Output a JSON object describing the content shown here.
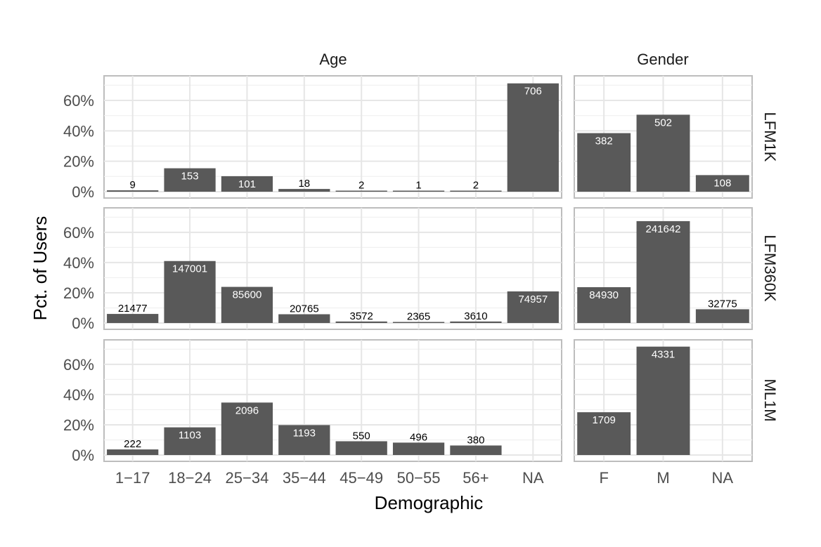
{
  "chart_data": {
    "type": "bar",
    "xlabel": "Demographic",
    "ylabel": "Pct. of Users",
    "ylim": [
      0,
      0.72
    ],
    "y_ticks": [
      0,
      0.2,
      0.4,
      0.6
    ],
    "y_tick_labels": [
      "0%",
      "20%",
      "40%",
      "60%"
    ],
    "grid": true,
    "bar_color": "#595959",
    "column_facets": [
      "Age",
      "Gender"
    ],
    "row_facets": [
      "LFM1K",
      "LFM360K",
      "ML1M"
    ],
    "categories": {
      "Age": [
        "1−17",
        "18−24",
        "25−34",
        "35−44",
        "45−49",
        "50−55",
        "56+",
        "NA"
      ],
      "Gender": [
        "F",
        "M",
        "NA"
      ]
    },
    "panels": [
      {
        "row": "LFM1K",
        "col": "Age",
        "values": [
          0.009,
          0.154,
          0.102,
          0.018,
          0.002,
          0.001,
          0.002,
          0.712
        ],
        "labels": [
          "9",
          "153",
          "101",
          "18",
          "2",
          "1",
          "2",
          "706"
        ]
      },
      {
        "row": "LFM1K",
        "col": "Gender",
        "values": [
          0.385,
          0.506,
          0.109
        ],
        "labels": [
          "382",
          "502",
          "108"
        ]
      },
      {
        "row": "LFM360K",
        "col": "Age",
        "values": [
          0.06,
          0.41,
          0.239,
          0.058,
          0.01,
          0.007,
          0.01,
          0.209
        ],
        "labels": [
          "21477",
          "147001",
          "85600",
          "20765",
          "3572",
          "2365",
          "3610",
          "74957"
        ]
      },
      {
        "row": "LFM360K",
        "col": "Gender",
        "values": [
          0.237,
          0.674,
          0.091
        ],
        "labels": [
          "84930",
          "241642",
          "32775"
        ]
      },
      {
        "row": "ML1M",
        "col": "Age",
        "values": [
          0.037,
          0.183,
          0.347,
          0.198,
          0.091,
          0.082,
          0.063,
          0.0
        ],
        "labels": [
          "222",
          "1103",
          "2096",
          "1193",
          "550",
          "496",
          "380",
          ""
        ]
      },
      {
        "row": "ML1M",
        "col": "Gender",
        "values": [
          0.283,
          0.717,
          0.0
        ],
        "labels": [
          "1709",
          "4331",
          ""
        ]
      }
    ]
  }
}
